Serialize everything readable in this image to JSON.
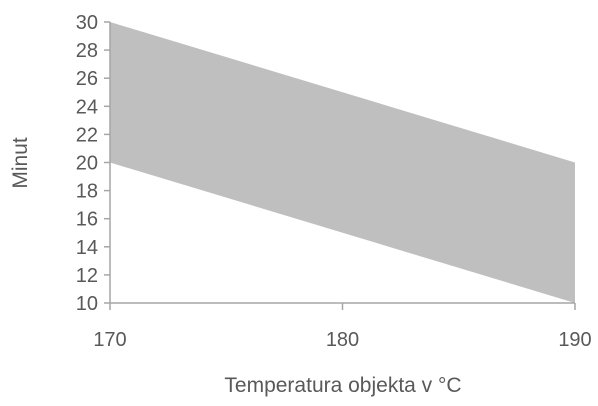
{
  "chart_data": {
    "type": "area",
    "title": "",
    "xlabel": "Temperatura objekta v °C",
    "ylabel": "Minut",
    "x": [
      170,
      190
    ],
    "series": [
      {
        "values": [
          20,
          10
        ]
      },
      {
        "values": [
          30,
          20
        ]
      }
    ],
    "xlim": [
      170,
      190
    ],
    "ylim": [
      10,
      30
    ],
    "x_ticks": [
      170,
      180,
      190
    ],
    "y_ticks": [
      10,
      12,
      14,
      16,
      18,
      20,
      22,
      24,
      26,
      28,
      30
    ],
    "grid": false,
    "legend": "none",
    "colors": {
      "band_fill": "#bfbfbf",
      "axis": "#a6a6a6",
      "text": "#595959"
    }
  }
}
